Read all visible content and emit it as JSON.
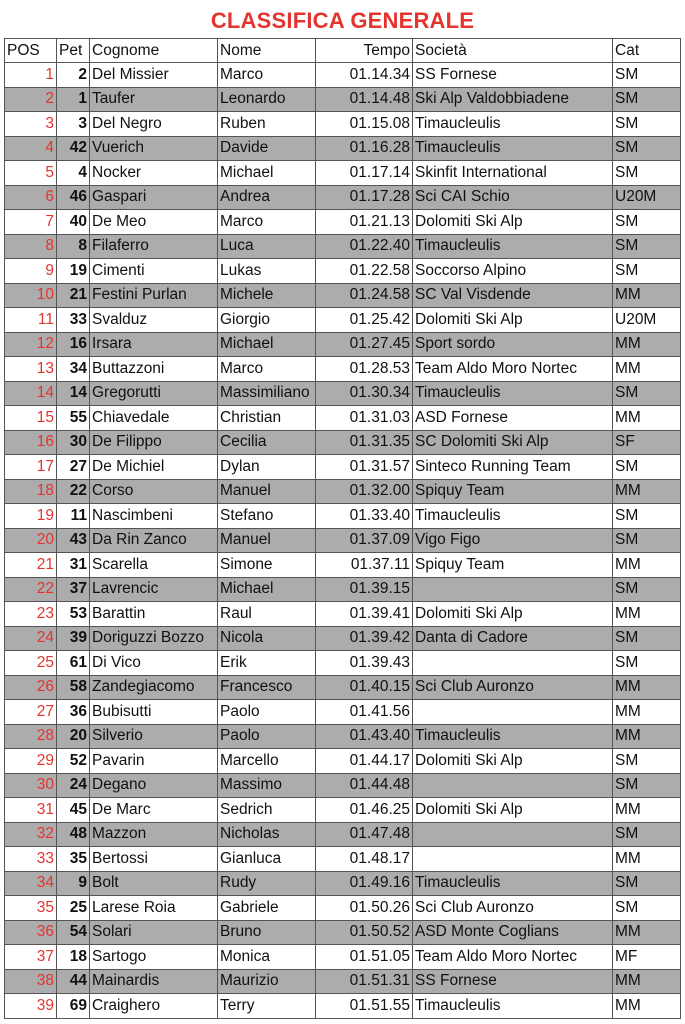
{
  "title": "CLASSIFICA GENERALE",
  "headers": {
    "pos": "POS",
    "pet": "Pet",
    "cognome": "Cognome",
    "nome": "Nome",
    "tempo": "Tempo",
    "societa": "Società",
    "cat": "Cat"
  },
  "colors": {
    "title": "#e3342f",
    "position": "#e3342f",
    "alt_row": "#acacac"
  },
  "rows": [
    [
      "1",
      "2",
      "Del Missier",
      "Marco",
      "01.14.34",
      "SS Fornese",
      "SM"
    ],
    [
      "2",
      "1",
      "Taufer",
      "Leonardo",
      "01.14.48",
      "Ski Alp Valdobbiadene",
      "SM"
    ],
    [
      "3",
      "3",
      "Del Negro",
      "Ruben",
      "01.15.08",
      "Timaucleulis",
      "SM"
    ],
    [
      "4",
      "42",
      "Vuerich",
      "Davide",
      "01.16.28",
      "Timaucleulis",
      "SM"
    ],
    [
      "5",
      "4",
      "Nocker",
      "Michael",
      "01.17.14",
      "Skinfit International",
      "SM"
    ],
    [
      "6",
      "46",
      "Gaspari",
      "Andrea",
      "01.17.28",
      "Sci CAI Schio",
      "U20M"
    ],
    [
      "7",
      "40",
      "De Meo",
      "Marco",
      "01.21.13",
      "Dolomiti Ski Alp",
      "SM"
    ],
    [
      "8",
      "8",
      "Filaferro",
      "Luca",
      "01.22.40",
      "Timaucleulis",
      "SM"
    ],
    [
      "9",
      "19",
      "Cimenti",
      "Lukas",
      "01.22.58",
      "Soccorso Alpino",
      "SM"
    ],
    [
      "10",
      "21",
      "Festini Purlan",
      "Michele",
      "01.24.58",
      "SC Val Visdende",
      "MM"
    ],
    [
      "11",
      "33",
      "Svalduz",
      "Giorgio",
      "01.25.42",
      "Dolomiti Ski Alp",
      "U20M"
    ],
    [
      "12",
      "16",
      "Irsara",
      "Michael",
      "01.27.45",
      "Sport sordo",
      "MM"
    ],
    [
      "13",
      "34",
      "Buttazzoni",
      "Marco",
      "01.28.53",
      "Team Aldo Moro Nortec",
      "MM"
    ],
    [
      "14",
      "14",
      "Gregorutti",
      "Massimiliano",
      "01.30.34",
      "Timaucleulis",
      "SM"
    ],
    [
      "15",
      "55",
      "Chiavedale",
      "Christian",
      "01.31.03",
      "ASD Fornese",
      "MM"
    ],
    [
      "16",
      "30",
      "De Filippo",
      "Cecilia",
      "01.31.35",
      "SC Dolomiti Ski Alp",
      "SF"
    ],
    [
      "17",
      "27",
      "De Michiel",
      "Dylan",
      "01.31.57",
      "Sinteco Running Team",
      "SM"
    ],
    [
      "18",
      "22",
      "Corso",
      "Manuel",
      "01.32.00",
      "Spiquy Team",
      "MM"
    ],
    [
      "19",
      "11",
      "Nascimbeni",
      "Stefano",
      "01.33.40",
      "Timaucleulis",
      "SM"
    ],
    [
      "20",
      "43",
      "Da Rin Zanco",
      "Manuel",
      "01.37.09",
      "Vigo Figo",
      "SM"
    ],
    [
      "21",
      "31",
      "Scarella",
      "Simone",
      "01.37.11",
      "Spiquy Team",
      "MM"
    ],
    [
      "22",
      "37",
      "Lavrencic",
      "Michael",
      "01.39.15",
      "",
      "SM"
    ],
    [
      "23",
      "53",
      "Barattin",
      "Raul",
      "01.39.41",
      "Dolomiti Ski Alp",
      "MM"
    ],
    [
      "24",
      "39",
      "Doriguzzi Bozzo",
      "Nicola",
      "01.39.42",
      "Danta di Cadore",
      "SM"
    ],
    [
      "25",
      "61",
      "Di Vico",
      "Erik",
      "01.39.43",
      "",
      "SM"
    ],
    [
      "26",
      "58",
      "Zandegiacomo",
      "Francesco",
      "01.40.15",
      "Sci Club Auronzo",
      "MM"
    ],
    [
      "27",
      "36",
      "Bubisutti",
      "Paolo",
      "01.41.56",
      "",
      "MM"
    ],
    [
      "28",
      "20",
      "Silverio",
      "Paolo",
      "01.43.40",
      "Timaucleulis",
      "MM"
    ],
    [
      "29",
      "52",
      "Pavarin",
      "Marcello",
      "01.44.17",
      "Dolomiti Ski Alp",
      "SM"
    ],
    [
      "30",
      "24",
      "Degano",
      "Massimo",
      "01.44.48",
      "",
      "SM"
    ],
    [
      "31",
      "45",
      "De Marc",
      "Sedrich",
      "01.46.25",
      "Dolomiti Ski Alp",
      "MM"
    ],
    [
      "32",
      "48",
      "Mazzon",
      "Nicholas",
      "01.47.48",
      "",
      "SM"
    ],
    [
      "33",
      "35",
      "Bertossi",
      "Gianluca",
      "01.48.17",
      "",
      "MM"
    ],
    [
      "34",
      "9",
      "Bolt",
      "Rudy",
      "01.49.16",
      "Timaucleulis",
      "SM"
    ],
    [
      "35",
      "25",
      "Larese Roia",
      "Gabriele",
      "01.50.26",
      "Sci Club Auronzo",
      "SM"
    ],
    [
      "36",
      "54",
      "Solari",
      "Bruno",
      "01.50.52",
      "ASD Monte Coglians",
      "MM"
    ],
    [
      "37",
      "18",
      "Sartogo",
      "Monica",
      "01.51.05",
      "Team Aldo Moro Nortec",
      "MF"
    ],
    [
      "38",
      "44",
      "Mainardis",
      "Maurizio",
      "01.51.31",
      "SS Fornese",
      "MM"
    ],
    [
      "39",
      "69",
      "Craighero",
      "Terry",
      "01.51.55",
      "Timaucleulis",
      "MM"
    ]
  ]
}
